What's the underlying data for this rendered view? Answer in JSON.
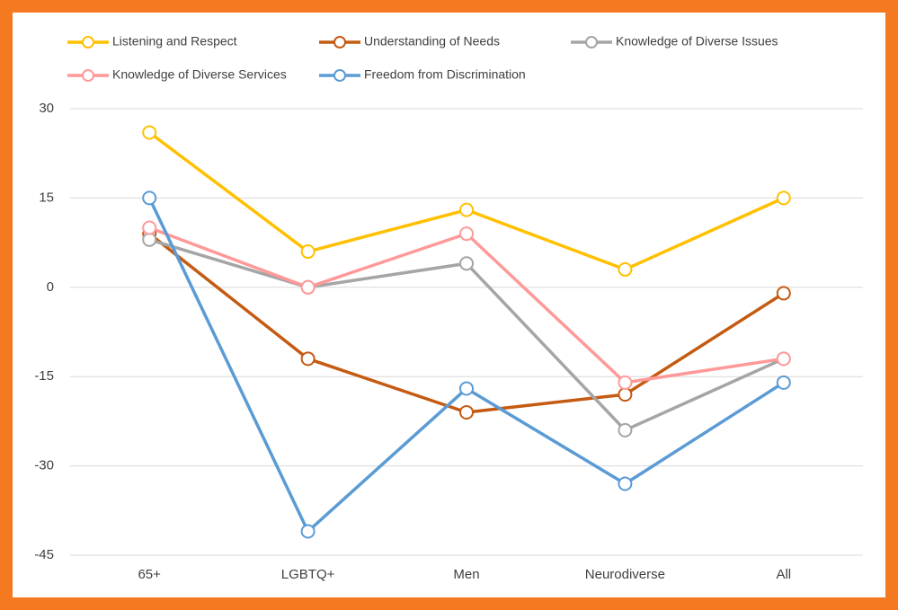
{
  "chart_data": {
    "type": "line",
    "categories": [
      "65+",
      "LGBTQ+",
      "Men",
      "Neurodiverse",
      "All"
    ],
    "series": [
      {
        "name": "Listening and Respect",
        "color": "#FFC000",
        "values": [
          26,
          6,
          13,
          3,
          15
        ]
      },
      {
        "name": "Understanding of Needs",
        "color": "#C55A11",
        "values": [
          9,
          -12,
          -21,
          -18,
          -1
        ]
      },
      {
        "name": "Knowledge of Diverse Issues",
        "color": "#A5A5A5",
        "values": [
          8,
          0,
          4,
          -24,
          -12
        ]
      },
      {
        "name": "Knowledge of Diverse Services",
        "color": "#FF9999",
        "values": [
          10,
          0,
          9,
          -16,
          -12
        ]
      },
      {
        "name": "Freedom from Discrimination",
        "color": "#5B9BD5",
        "values": [
          15,
          -41,
          -17,
          -33,
          -16
        ]
      }
    ],
    "ylim": [
      -45,
      30
    ],
    "yticks": [
      -45,
      -30,
      -15,
      0,
      15,
      30
    ],
    "grid": true
  }
}
